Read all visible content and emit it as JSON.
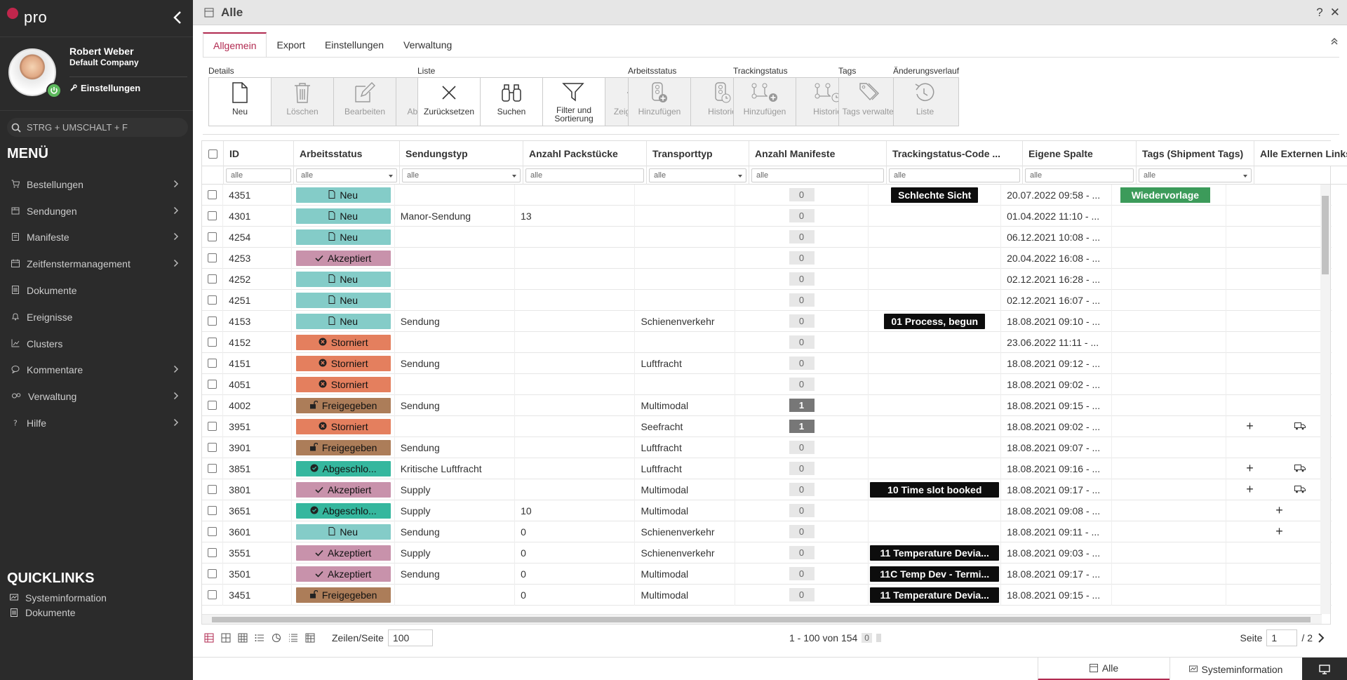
{
  "app": {
    "logo_text": "pro",
    "window_title": "Alle",
    "help_label": "?",
    "close_label": "✕"
  },
  "profile": {
    "name": "Robert Weber",
    "company": "Default Company",
    "settings_label": "Einstellungen"
  },
  "search": {
    "placeholder": "STRG + UMSCHALT + F"
  },
  "menu": {
    "title": "MENÜ",
    "items": [
      {
        "label": "Bestellungen",
        "icon": "cart-icon",
        "arrow": true
      },
      {
        "label": "Sendungen",
        "icon": "package-icon",
        "arrow": true
      },
      {
        "label": "Manifeste",
        "icon": "clipboard-icon",
        "arrow": true
      },
      {
        "label": "Zeitfenstermanagement",
        "icon": "calendar-icon",
        "arrow": true
      },
      {
        "label": "Dokumente",
        "icon": "document-icon",
        "arrow": false
      },
      {
        "label": "Ereignisse",
        "icon": "bell-icon",
        "arrow": false
      },
      {
        "label": "Clusters",
        "icon": "chart-icon",
        "arrow": false
      },
      {
        "label": "Kommentare",
        "icon": "comment-icon",
        "arrow": true
      },
      {
        "label": "Verwaltung",
        "icon": "gears-icon",
        "arrow": true
      },
      {
        "label": "Hilfe",
        "icon": "question-icon",
        "arrow": true
      }
    ]
  },
  "quicklinks": {
    "title": "QUICKLINKS",
    "items": [
      {
        "label": "Systeminformation"
      },
      {
        "label": "Dokumente"
      }
    ]
  },
  "tabs": [
    "Allgemein",
    "Export",
    "Einstellungen",
    "Verwaltung"
  ],
  "ribbon": {
    "groups": [
      {
        "title": "Details",
        "buttons": [
          {
            "label": "Neu"
          },
          {
            "label": "Löschen"
          },
          {
            "label": "Bearbeiten"
          },
          {
            "label": "Abbrechen"
          }
        ]
      },
      {
        "title": "Liste",
        "buttons": [
          {
            "label": "Zurücksetzen"
          },
          {
            "label": "Suchen"
          },
          {
            "label": "Filter und Sortierung"
          },
          {
            "label": "Zeige Daten"
          }
        ]
      },
      {
        "title": "Arbeitsstatus",
        "buttons": [
          {
            "label": "Hinzufügen"
          },
          {
            "label": "Historie"
          }
        ]
      },
      {
        "title": "Trackingstatus",
        "buttons": [
          {
            "label": "Hinzufügen"
          },
          {
            "label": "Historie"
          }
        ]
      },
      {
        "title": "Tags",
        "buttons": [
          {
            "label": "Tags verwalten"
          }
        ]
      },
      {
        "title": "Änderungsverlauf",
        "buttons": [
          {
            "label": "Liste"
          }
        ]
      }
    ]
  },
  "grid": {
    "columns": [
      "ID",
      "Arbeitsstatus",
      "Sendungstyp",
      "Anzahl Packstücke",
      "Transporttyp",
      "Anzahl Manifeste",
      "Trackingstatus-Code ...",
      "Eigene Spalte",
      "Tags (Shipment Tags)",
      "Alle Externen Links"
    ],
    "filter_placeholder": "alle",
    "rows": [
      {
        "id": "4351",
        "status": "Neu",
        "typ": "",
        "pack": "",
        "transport": "",
        "manifeste": "0",
        "tracking": "Schlechte Sicht",
        "date": "20.07.2022 09:58 - ...",
        "tag": "Wiedervorlage",
        "plus": false,
        "truck": false
      },
      {
        "id": "4301",
        "status": "Neu",
        "typ": "Manor-Sendung",
        "pack": "13",
        "transport": "",
        "manifeste": "0",
        "tracking": "",
        "date": "01.04.2022 11:10 - ...",
        "tag": "",
        "plus": false,
        "truck": false
      },
      {
        "id": "4254",
        "status": "Neu",
        "typ": "",
        "pack": "",
        "transport": "",
        "manifeste": "0",
        "tracking": "",
        "date": "06.12.2021 10:08 - ...",
        "tag": "",
        "plus": false,
        "truck": false
      },
      {
        "id": "4253",
        "status": "Akzeptiert",
        "typ": "",
        "pack": "",
        "transport": "",
        "manifeste": "0",
        "tracking": "",
        "date": "20.04.2022 16:08 - ...",
        "tag": "",
        "plus": false,
        "truck": false
      },
      {
        "id": "4252",
        "status": "Neu",
        "typ": "",
        "pack": "",
        "transport": "",
        "manifeste": "0",
        "tracking": "",
        "date": "02.12.2021 16:28 - ...",
        "tag": "",
        "plus": false,
        "truck": false
      },
      {
        "id": "4251",
        "status": "Neu",
        "typ": "",
        "pack": "",
        "transport": "",
        "manifeste": "0",
        "tracking": "",
        "date": "02.12.2021 16:07 - ...",
        "tag": "",
        "plus": false,
        "truck": false
      },
      {
        "id": "4153",
        "status": "Neu",
        "typ": "Sendung",
        "pack": "",
        "transport": "Schienenverkehr",
        "manifeste": "0",
        "tracking": "01 Process, begun",
        "date": "18.08.2021 09:10 - ...",
        "tag": "",
        "plus": false,
        "truck": false
      },
      {
        "id": "4152",
        "status": "Storniert",
        "typ": "",
        "pack": "",
        "transport": "",
        "manifeste": "0",
        "tracking": "",
        "date": "23.06.2022 11:11 - ...",
        "tag": "",
        "plus": false,
        "truck": false
      },
      {
        "id": "4151",
        "status": "Storniert",
        "typ": "Sendung",
        "pack": "",
        "transport": "Luftfracht",
        "manifeste": "0",
        "tracking": "",
        "date": "18.08.2021 09:12 - ...",
        "tag": "",
        "plus": false,
        "truck": false
      },
      {
        "id": "4051",
        "status": "Storniert",
        "typ": "",
        "pack": "",
        "transport": "",
        "manifeste": "0",
        "tracking": "",
        "date": "18.08.2021 09:02 - ...",
        "tag": "",
        "plus": false,
        "truck": false
      },
      {
        "id": "4002",
        "status": "Freigegeben",
        "typ": "Sendung",
        "pack": "",
        "transport": "Multimodal",
        "manifeste": "1",
        "tracking": "",
        "date": "18.08.2021 09:15 - ...",
        "tag": "",
        "plus": false,
        "truck": false
      },
      {
        "id": "3951",
        "status": "Storniert",
        "typ": "",
        "pack": "",
        "transport": "Seefracht",
        "manifeste": "1",
        "tracking": "",
        "date": "18.08.2021 09:02 - ...",
        "tag": "",
        "plus": true,
        "truck": true
      },
      {
        "id": "3901",
        "status": "Freigegeben",
        "typ": "Sendung",
        "pack": "",
        "transport": "Luftfracht",
        "manifeste": "0",
        "tracking": "",
        "date": "18.08.2021 09:07 - ...",
        "tag": "",
        "plus": false,
        "truck": false
      },
      {
        "id": "3851",
        "status": "Abgeschlo...",
        "typ": "Kritische Luftfracht",
        "pack": "",
        "transport": "Luftfracht",
        "manifeste": "0",
        "tracking": "",
        "date": "18.08.2021 09:16 - ...",
        "tag": "",
        "plus": true,
        "truck": true
      },
      {
        "id": "3801",
        "status": "Akzeptiert",
        "typ": "Supply",
        "pack": "",
        "transport": "Multimodal",
        "manifeste": "0",
        "tracking": "10 Time slot booked",
        "date": "18.08.2021 09:17 - ...",
        "tag": "",
        "plus": true,
        "truck": true
      },
      {
        "id": "3651",
        "status": "Abgeschlo...",
        "typ": "Supply",
        "pack": "10",
        "transport": "Multimodal",
        "manifeste": "0",
        "tracking": "",
        "date": "18.08.2021 09:08 - ...",
        "tag": "",
        "plus": true,
        "truck": false
      },
      {
        "id": "3601",
        "status": "Neu",
        "typ": "Sendung",
        "pack": "0",
        "transport": "Schienenverkehr",
        "manifeste": "0",
        "tracking": "",
        "date": "18.08.2021 09:11 - ...",
        "tag": "",
        "plus": true,
        "truck": false
      },
      {
        "id": "3551",
        "status": "Akzeptiert",
        "typ": "Supply",
        "pack": "0",
        "transport": "Schienenverkehr",
        "manifeste": "0",
        "tracking": "11 Temperature Devia...",
        "date": "18.08.2021 09:03 - ...",
        "tag": "",
        "plus": false,
        "truck": false
      },
      {
        "id": "3501",
        "status": "Akzeptiert",
        "typ": "Sendung",
        "pack": "0",
        "transport": "Multimodal",
        "manifeste": "0",
        "tracking": "11C Temp Dev - Termi...",
        "date": "18.08.2021 09:17 - ...",
        "tag": "",
        "plus": false,
        "truck": false
      },
      {
        "id": "3451",
        "status": "Freigegeben",
        "typ": "",
        "pack": "0",
        "transport": "Multimodal",
        "manifeste": "0",
        "tracking": "11 Temperature Devia...",
        "date": "18.08.2021 09:15 - ...",
        "tag": "",
        "plus": false,
        "truck": false
      }
    ]
  },
  "footer": {
    "rows_per_page_label": "Zeilen/Seite",
    "rows_per_page": "100",
    "page_info": "1 - 100 von 154",
    "selected_count": "0",
    "page_label": "Seite",
    "page": "1",
    "page_total": "/ 2"
  },
  "bottom_tabs": [
    "Alle",
    "Systeminformation"
  ],
  "colors": {
    "accent": "#b12a50",
    "neu": "#84ccc8",
    "akzeptiert": "#c892ab",
    "storniert": "#e47f5e",
    "freigegeben": "#ac7d59",
    "abgeschlossen": "#35b79e",
    "tag_green": "#3c9b5a"
  }
}
